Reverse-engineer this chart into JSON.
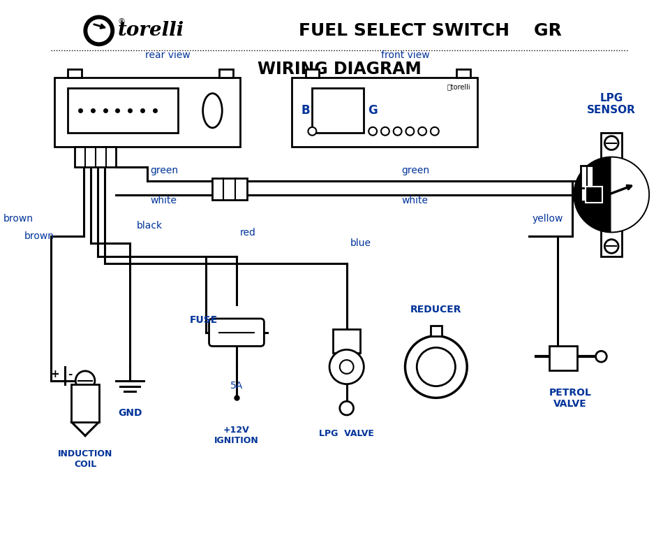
{
  "title": "FUEL SELECT SWITCH    GR",
  "subtitle": "WIRING DIAGRAM",
  "bg_color": "#ffffff",
  "text_color_black": "#000000",
  "text_color_blue": "#003399",
  "label_green": "green",
  "label_white": "white",
  "label_brown": "brown",
  "label_black": "black",
  "label_red": "red",
  "label_blue": "blue",
  "label_yellow": "yellow",
  "label_rear_view": "rear view",
  "label_front_view": "front view",
  "label_lpg_sensor": "LPG\nSENSOR",
  "label_reducer": "REDUCER",
  "label_fuse": "FUSE",
  "label_5a": "5A",
  "label_12v": "+12V\nIGNITION",
  "label_gnd": "GND",
  "label_induction": "INDUCTION\nCOIL",
  "label_lpg_valve": "LPG  VALVE",
  "label_petrol_valve": "PETROL\nVALVE",
  "label_b": "B",
  "label_g": "G"
}
